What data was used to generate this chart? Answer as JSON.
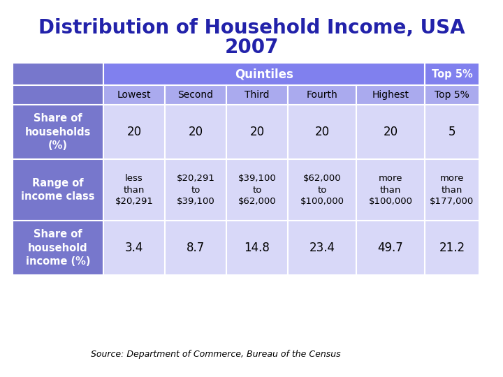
{
  "title_line1": "Distribution of Household Income, USA",
  "title_line2": "2007",
  "title_color": "#2222aa",
  "title_fontsize": 20,
  "title_fontweight": "bold",
  "source_text": "Source: Department of Commerce, Bureau of the Census",
  "header_bg": "#8080ee",
  "subheader_bg": "#aaaaee",
  "row_label_bg": "#7777cc",
  "row_label_color": "#ffffff",
  "cell_bg_light": "#d8d8f8",
  "quintiles_label": "Quintiles",
  "col_headers": [
    "Lowest",
    "Second",
    "Third",
    "Fourth",
    "Highest",
    "Top 5%"
  ],
  "row1_label": "Share of\nhouseholds\n(%)",
  "row1_data": [
    "20",
    "20",
    "20",
    "20",
    "20",
    "5"
  ],
  "row2_label": "Range of\nincome class",
  "row2_data": [
    "less\nthan\n$20,291",
    "$20,291\nto\n$39,100",
    "$39,100\nto\n$62,000",
    "$62,000\nto\n$100,000",
    "more\nthan\n$100,000",
    "more\nthan\n$177,000"
  ],
  "row3_label": "Share of\nhousehold\nincome (%)",
  "row3_data": [
    "3.4",
    "8.7",
    "14.8",
    "23.4",
    "49.7",
    "21.2"
  ],
  "bg_color": "#ffffff"
}
